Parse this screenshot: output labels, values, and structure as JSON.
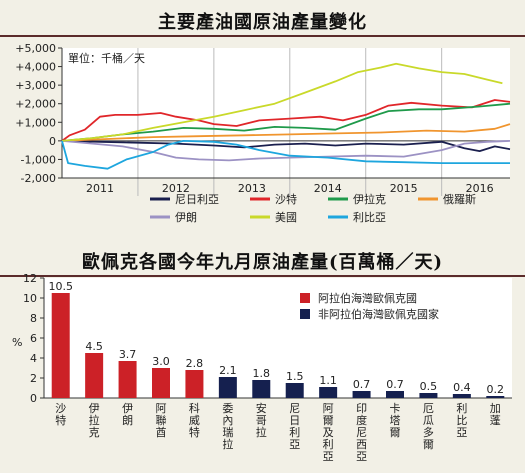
{
  "chart_data": [
    {
      "type": "line",
      "title": "主要產油國原油產量變化",
      "unit_label": "單位：千桶／天",
      "x_ticks": [
        "2011",
        "2012",
        "2013",
        "2014",
        "2015",
        "2016"
      ],
      "y_ticks": [
        "+5,000",
        "+4,000",
        "+3,000",
        "+2,000",
        "+1,000",
        "0",
        "-1,000",
        "-2,000"
      ],
      "x_range": [
        2011.0,
        2016.9
      ],
      "ylim": [
        -2000,
        5000
      ],
      "grid": "vertical",
      "legend_position": "bottom",
      "colors": {
        "nigeria": "#1a1f4e",
        "saudi": "#e0262a",
        "iraq": "#1f9a4a",
        "russia": "#f0952e",
        "iran": "#9c92c4",
        "usa": "#c9d92a",
        "libya": "#1ea6de"
      },
      "series": [
        {
          "name": "尼日利亞",
          "key": "nigeria",
          "points": [
            [
              2011.0,
              0
            ],
            [
              2011.5,
              -50
            ],
            [
              2012.0,
              -100
            ],
            [
              2012.5,
              -150
            ],
            [
              2013.0,
              -250
            ],
            [
              2013.4,
              -350
            ],
            [
              2013.8,
              -200
            ],
            [
              2014.2,
              -150
            ],
            [
              2014.6,
              -250
            ],
            [
              2015.0,
              -150
            ],
            [
              2015.5,
              -200
            ],
            [
              2016.0,
              -50
            ],
            [
              2016.3,
              -400
            ],
            [
              2016.5,
              -550
            ],
            [
              2016.7,
              -300
            ],
            [
              2016.9,
              -450
            ]
          ]
        },
        {
          "name": "沙特",
          "key": "saudi",
          "points": [
            [
              2011.0,
              0
            ],
            [
              2011.1,
              300
            ],
            [
              2011.3,
              600
            ],
            [
              2011.5,
              1300
            ],
            [
              2011.7,
              1400
            ],
            [
              2012.0,
              1400
            ],
            [
              2012.3,
              1500
            ],
            [
              2012.5,
              1300
            ],
            [
              2012.8,
              1100
            ],
            [
              2013.0,
              900
            ],
            [
              2013.3,
              800
            ],
            [
              2013.6,
              1100
            ],
            [
              2014.0,
              1200
            ],
            [
              2014.4,
              1300
            ],
            [
              2014.7,
              1100
            ],
            [
              2015.0,
              1400
            ],
            [
              2015.3,
              1900
            ],
            [
              2015.6,
              2050
            ],
            [
              2016.0,
              1900
            ],
            [
              2016.4,
              1800
            ],
            [
              2016.7,
              2200
            ],
            [
              2016.9,
              2100
            ]
          ]
        },
        {
          "name": "伊拉克",
          "key": "iraq",
          "points": [
            [
              2011.0,
              0
            ],
            [
              2011.4,
              150
            ],
            [
              2011.8,
              350
            ],
            [
              2012.2,
              500
            ],
            [
              2012.6,
              700
            ],
            [
              2013.0,
              650
            ],
            [
              2013.4,
              550
            ],
            [
              2013.8,
              750
            ],
            [
              2014.2,
              700
            ],
            [
              2014.6,
              600
            ],
            [
              2015.0,
              1200
            ],
            [
              2015.3,
              1600
            ],
            [
              2015.7,
              1700
            ],
            [
              2016.0,
              1700
            ],
            [
              2016.5,
              1850
            ],
            [
              2016.9,
              2000
            ]
          ]
        },
        {
          "name": "俄羅斯",
          "key": "russia",
          "points": [
            [
              2011.0,
              0
            ],
            [
              2011.6,
              100
            ],
            [
              2012.2,
              200
            ],
            [
              2012.8,
              250
            ],
            [
              2013.4,
              300
            ],
            [
              2014.0,
              350
            ],
            [
              2014.6,
              400
            ],
            [
              2015.2,
              450
            ],
            [
              2015.8,
              550
            ],
            [
              2016.3,
              500
            ],
            [
              2016.7,
              650
            ],
            [
              2016.9,
              900
            ]
          ]
        },
        {
          "name": "伊朗",
          "key": "iran",
          "points": [
            [
              2011.0,
              0
            ],
            [
              2011.4,
              -150
            ],
            [
              2011.8,
              -300
            ],
            [
              2012.2,
              -600
            ],
            [
              2012.5,
              -900
            ],
            [
              2012.8,
              -1000
            ],
            [
              2013.2,
              -1050
            ],
            [
              2013.6,
              -950
            ],
            [
              2014.0,
              -900
            ],
            [
              2014.5,
              -850
            ],
            [
              2015.0,
              -800
            ],
            [
              2015.5,
              -850
            ],
            [
              2016.0,
              -500
            ],
            [
              2016.3,
              -150
            ],
            [
              2016.6,
              -50
            ],
            [
              2016.9,
              0
            ]
          ]
        },
        {
          "name": "美國",
          "key": "usa",
          "points": [
            [
              2011.0,
              0
            ],
            [
              2011.4,
              150
            ],
            [
              2011.8,
              350
            ],
            [
              2012.2,
              700
            ],
            [
              2012.6,
              1000
            ],
            [
              2013.0,
              1300
            ],
            [
              2013.4,
              1650
            ],
            [
              2013.8,
              2000
            ],
            [
              2014.2,
              2600
            ],
            [
              2014.6,
              3200
            ],
            [
              2014.9,
              3700
            ],
            [
              2015.2,
              3950
            ],
            [
              2015.4,
              4150
            ],
            [
              2015.7,
              3900
            ],
            [
              2016.0,
              3700
            ],
            [
              2016.3,
              3600
            ],
            [
              2016.6,
              3300
            ],
            [
              2016.8,
              3100
            ]
          ]
        },
        {
          "name": "利比亞",
          "key": "libya",
          "points": [
            [
              2011.0,
              0
            ],
            [
              2011.08,
              -1200
            ],
            [
              2011.3,
              -1350
            ],
            [
              2011.6,
              -1500
            ],
            [
              2011.85,
              -1000
            ],
            [
              2012.2,
              -600
            ],
            [
              2012.4,
              -200
            ],
            [
              2012.6,
              0
            ],
            [
              2013.0,
              -50
            ],
            [
              2013.3,
              -200
            ],
            [
              2013.6,
              -500
            ],
            [
              2014.0,
              -800
            ],
            [
              2014.5,
              -900
            ],
            [
              2015.0,
              -1100
            ],
            [
              2015.5,
              -1150
            ],
            [
              2016.0,
              -1200
            ],
            [
              2016.5,
              -1200
            ],
            [
              2016.9,
              -1200
            ]
          ]
        }
      ]
    },
    {
      "type": "bar",
      "title": "歐佩克各國今年九月原油產量(百萬桶／天)",
      "ylabel": "%",
      "ylim": [
        0,
        12
      ],
      "y_ticks": [
        "12",
        "10",
        "8",
        "6",
        "4",
        "2",
        "0"
      ],
      "legend_position": "top-right",
      "legend": [
        {
          "label": "阿拉伯海灣歐佩克國",
          "group": "gulf"
        },
        {
          "label": "非阿拉伯海灣歐佩克國家",
          "group": "nongulf"
        }
      ],
      "colors": {
        "gulf": "#cc2127",
        "nongulf": "#15204f"
      },
      "categories": [
        "沙特",
        "伊拉克",
        "伊朗",
        "阿聯酋",
        "科威特",
        "委內瑞拉",
        "安哥拉",
        "尼日利亞",
        "阿爾及利亞",
        "印度尼西亞",
        "卡塔爾",
        "厄瓜多爾",
        "利比亞",
        "加蓬"
      ],
      "values": [
        10.5,
        4.5,
        3.7,
        3.0,
        2.8,
        2.1,
        1.8,
        1.5,
        1.1,
        0.7,
        0.7,
        0.5,
        0.4,
        0.2
      ],
      "value_labels": [
        "10.5",
        "4.5",
        "3.7",
        "3.0",
        "2.8",
        "2.1",
        "1.8",
        "1.5",
        "1.1",
        "0.7",
        "0.7",
        "0.5",
        "0.4",
        "0.2"
      ],
      "groups": [
        "gulf",
        "gulf",
        "gulf",
        "gulf",
        "gulf",
        "nongulf",
        "nongulf",
        "nongulf",
        "nongulf",
        "nongulf",
        "nongulf",
        "nongulf",
        "nongulf",
        "nongulf"
      ]
    }
  ]
}
